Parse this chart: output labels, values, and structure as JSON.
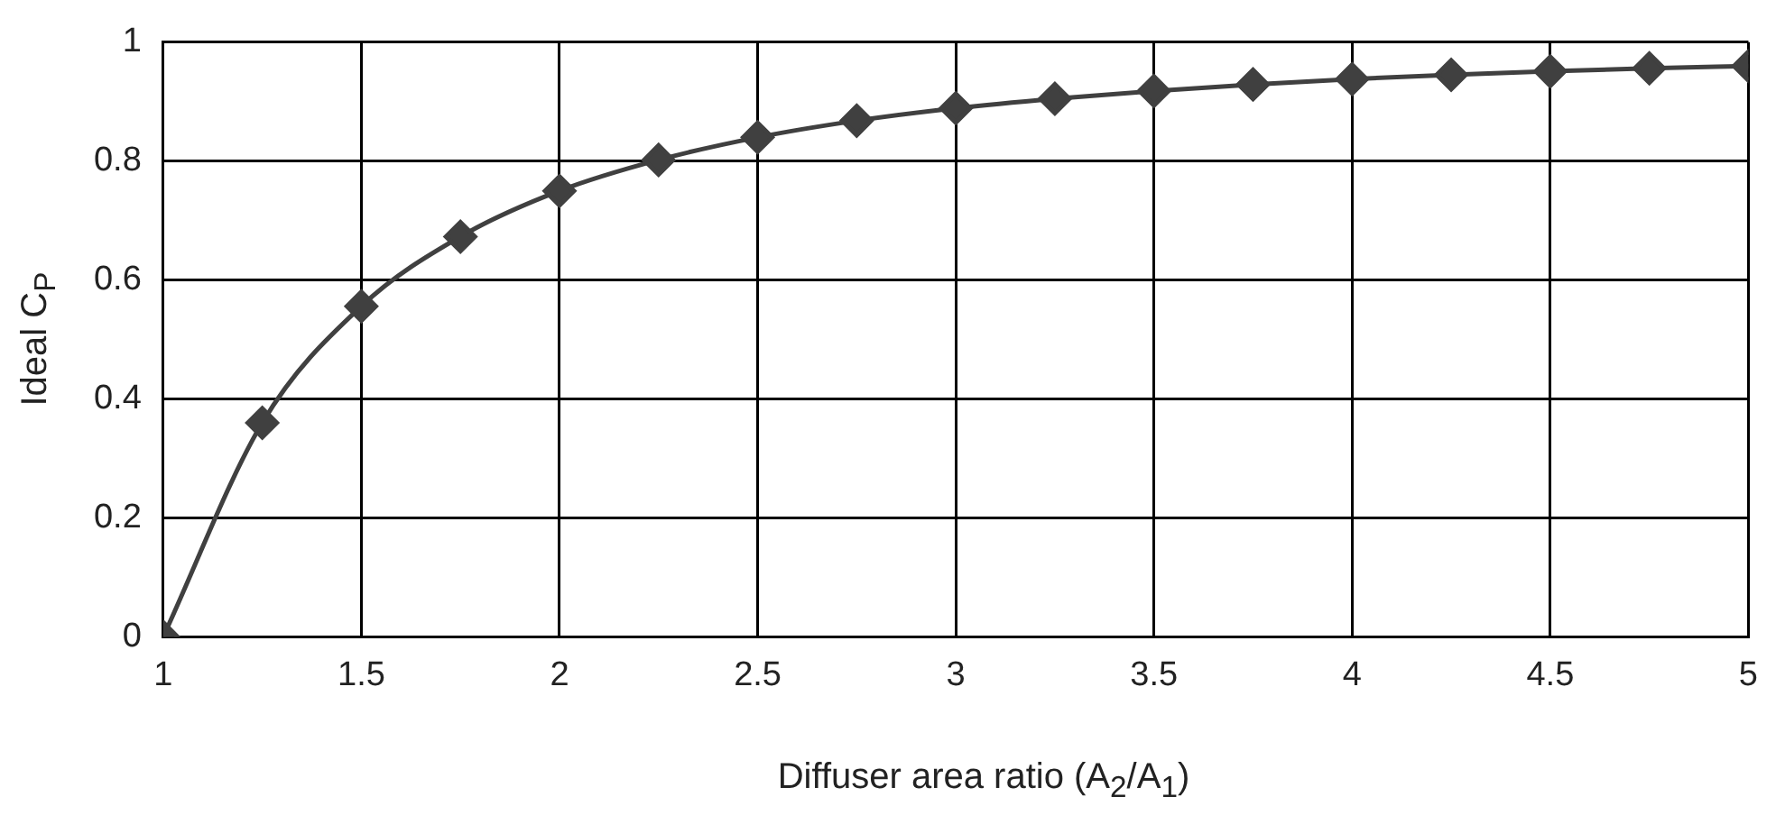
{
  "chart_data": {
    "type": "line",
    "xlabel": "Diffuser area ratio (A$_{2}$/A$_{1}$)",
    "ylabel": "Ideal C$_{P}$",
    "x": [
      1,
      1.25,
      1.5,
      1.75,
      2,
      2.25,
      2.5,
      2.75,
      3,
      3.25,
      3.5,
      3.75,
      4,
      4.25,
      4.5,
      4.75,
      5
    ],
    "series": [
      {
        "color": "#404040",
        "values": [
          0,
          0.36,
          0.556,
          0.673,
          0.75,
          0.802,
          0.84,
          0.868,
          0.889,
          0.905,
          0.918,
          0.929,
          0.938,
          0.945,
          0.951,
          0.956,
          0.96
        ]
      }
    ],
    "xlim": [
      1,
      5
    ],
    "xticks": [
      1,
      1.5,
      2,
      2.5,
      3,
      3.5,
      4,
      4.5,
      5
    ],
    "ylim": [
      0,
      1
    ],
    "yticks": [
      0,
      0.2,
      0.4,
      0.6,
      0.8,
      1
    ],
    "grid": true,
    "legend": false,
    "marker": "diamond",
    "line_style": "solid"
  }
}
